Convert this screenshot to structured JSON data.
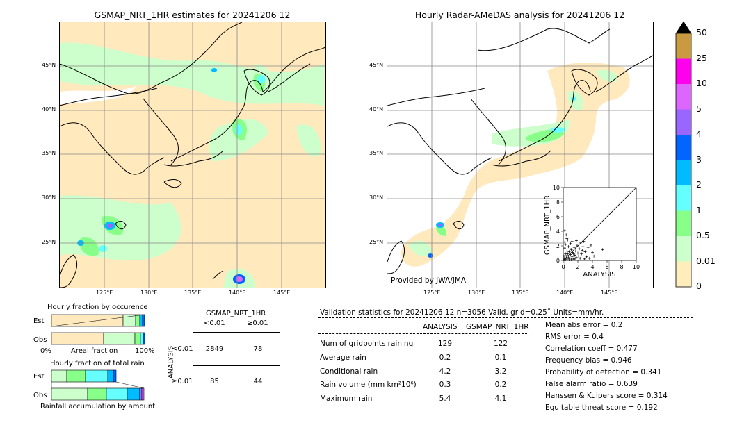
{
  "left_map": {
    "title": "GSMAP_NRT_1HR estimates for 20241206 12",
    "lat_labels": [
      "45°N",
      "40°N",
      "35°N",
      "30°N",
      "25°N"
    ],
    "lon_labels": [
      "125°E",
      "130°E",
      "135°E",
      "140°E",
      "145°E"
    ]
  },
  "right_map": {
    "title": "Hourly Radar-AMeDAS analysis for 20241206 12",
    "lat_labels": [
      "45°N",
      "40°N",
      "35°N",
      "30°N",
      "25°N"
    ],
    "lon_labels": [
      "125°E",
      "130°E",
      "135°E",
      "140°E",
      "145°E"
    ],
    "credit": "Provided by JWA/JMA"
  },
  "colorbar": {
    "labels": [
      "50",
      "25",
      "10",
      "5",
      "4",
      "3",
      "2",
      "1",
      "0.5",
      "0.01",
      "0"
    ],
    "colors": [
      "#c99a40",
      "#ff00ee",
      "#dd66ff",
      "#9966ff",
      "#0066ff",
      "#00bbff",
      "#66ffff",
      "#88ff88",
      "#ccffcc",
      "#ffeebb"
    ],
    "over_color": "#000000"
  },
  "occurrence": {
    "title": "Hourly fraction by occurence",
    "rows": [
      "Est",
      "Obs"
    ],
    "axis_left": "0%",
    "axis_mid": "Areal fraction",
    "axis_right": "100%"
  },
  "total_rain": {
    "title": "Hourly fraction of total rain",
    "rows": [
      "Est",
      "Obs"
    ],
    "caption": "Rainfall accumulation by amount"
  },
  "contingency": {
    "title": "GSMAP_NRT_1HR",
    "col_lt": "<0.01",
    "col_ge": "≥0.01",
    "side_label": "ANALYSIS",
    "row_lt": "<0.01",
    "row_ge": "≥0.01",
    "cells": [
      "2849",
      "78",
      "85",
      "44"
    ]
  },
  "validation": {
    "header": "Validation statistics for 20241206 12  n=3056 Valid. grid=0.25˚ Units=mm/hr.",
    "col_analysis": "ANALYSIS",
    "col_gsmap": "GSMAP_NRT_1HR",
    "rows": [
      {
        "label": "Num of gridpoints raining",
        "analysis": "129",
        "gsmap": "122"
      },
      {
        "label": "Average rain",
        "analysis": "0.2",
        "gsmap": "0.1"
      },
      {
        "label": "Conditional rain",
        "analysis": "4.2",
        "gsmap": "3.2"
      },
      {
        "label": "Rain volume (mm km²10⁶)",
        "analysis": "0.3",
        "gsmap": "0.2"
      },
      {
        "label": "Maximum rain",
        "analysis": "5.4",
        "gsmap": "4.1"
      }
    ],
    "scores": [
      "Mean abs error =    0.2",
      "RMS error =    0.4",
      "Correlation coeff =  0.477",
      "Frequency bias =  0.946",
      "Probability of detection =  0.341",
      "False alarm ratio =  0.639",
      "Hanssen & Kuipers score =  0.314",
      "Equitable threat score =  0.192"
    ]
  },
  "chart_data": {
    "type": "scatter",
    "xlabel": "ANALYSIS",
    "ylabel": "GSMAP_NRT_1HR",
    "xlim": [
      0,
      10
    ],
    "ylim": [
      0,
      10
    ],
    "xticks": [
      "0",
      "2",
      "4",
      "6",
      "8",
      "10"
    ],
    "yticks": [
      "0",
      "2",
      "4",
      "6",
      "8",
      "10"
    ],
    "points": [
      [
        0.1,
        0.1
      ],
      [
        0.2,
        0.3
      ],
      [
        0.3,
        0.1
      ],
      [
        0.4,
        0.6
      ],
      [
        0.5,
        0.2
      ],
      [
        0.6,
        0.9
      ],
      [
        0.7,
        0.4
      ],
      [
        0.8,
        1.2
      ],
      [
        0.9,
        0.3
      ],
      [
        1.0,
        0.8
      ],
      [
        1.1,
        1.5
      ],
      [
        1.2,
        0.5
      ],
      [
        1.3,
        1.1
      ],
      [
        1.4,
        0.2
      ],
      [
        1.5,
        1.8
      ],
      [
        1.6,
        0.7
      ],
      [
        1.7,
        1.3
      ],
      [
        1.8,
        0.4
      ],
      [
        1.9,
        2.0
      ],
      [
        2.0,
        1.0
      ],
      [
        2.1,
        0.6
      ],
      [
        2.2,
        1.6
      ],
      [
        2.4,
        2.4
      ],
      [
        2.5,
        0.9
      ],
      [
        2.6,
        1.4
      ],
      [
        2.8,
        2.6
      ],
      [
        3.0,
        1.2
      ],
      [
        3.2,
        0.5
      ],
      [
        3.4,
        1.8
      ],
      [
        3.6,
        0.3
      ],
      [
        4.0,
        1.1
      ],
      [
        4.2,
        0.6
      ],
      [
        5.4,
        1.5
      ],
      [
        0.2,
        1.7
      ],
      [
        0.3,
        2.2
      ],
      [
        0.5,
        3.0
      ],
      [
        0.4,
        3.5
      ],
      [
        0.6,
        2.8
      ],
      [
        0.2,
        2.5
      ],
      [
        1.0,
        2.3
      ],
      [
        0.1,
        0.6
      ],
      [
        0.3,
        0.9
      ],
      [
        0.7,
        1.9
      ],
      [
        1.2,
        2.6
      ],
      [
        0.8,
        0.1
      ],
      [
        1.6,
        0.2
      ],
      [
        2.3,
        0.3
      ],
      [
        0.2,
        4.1
      ],
      [
        0.9,
        1.6
      ],
      [
        1.4,
        0.9
      ],
      [
        0.5,
        1.3
      ],
      [
        1.1,
        0.1
      ],
      [
        2.9,
        0.2
      ],
      [
        3.8,
        2.1
      ],
      [
        2.7,
        1.9
      ],
      [
        1.8,
        2.7
      ]
    ]
  }
}
